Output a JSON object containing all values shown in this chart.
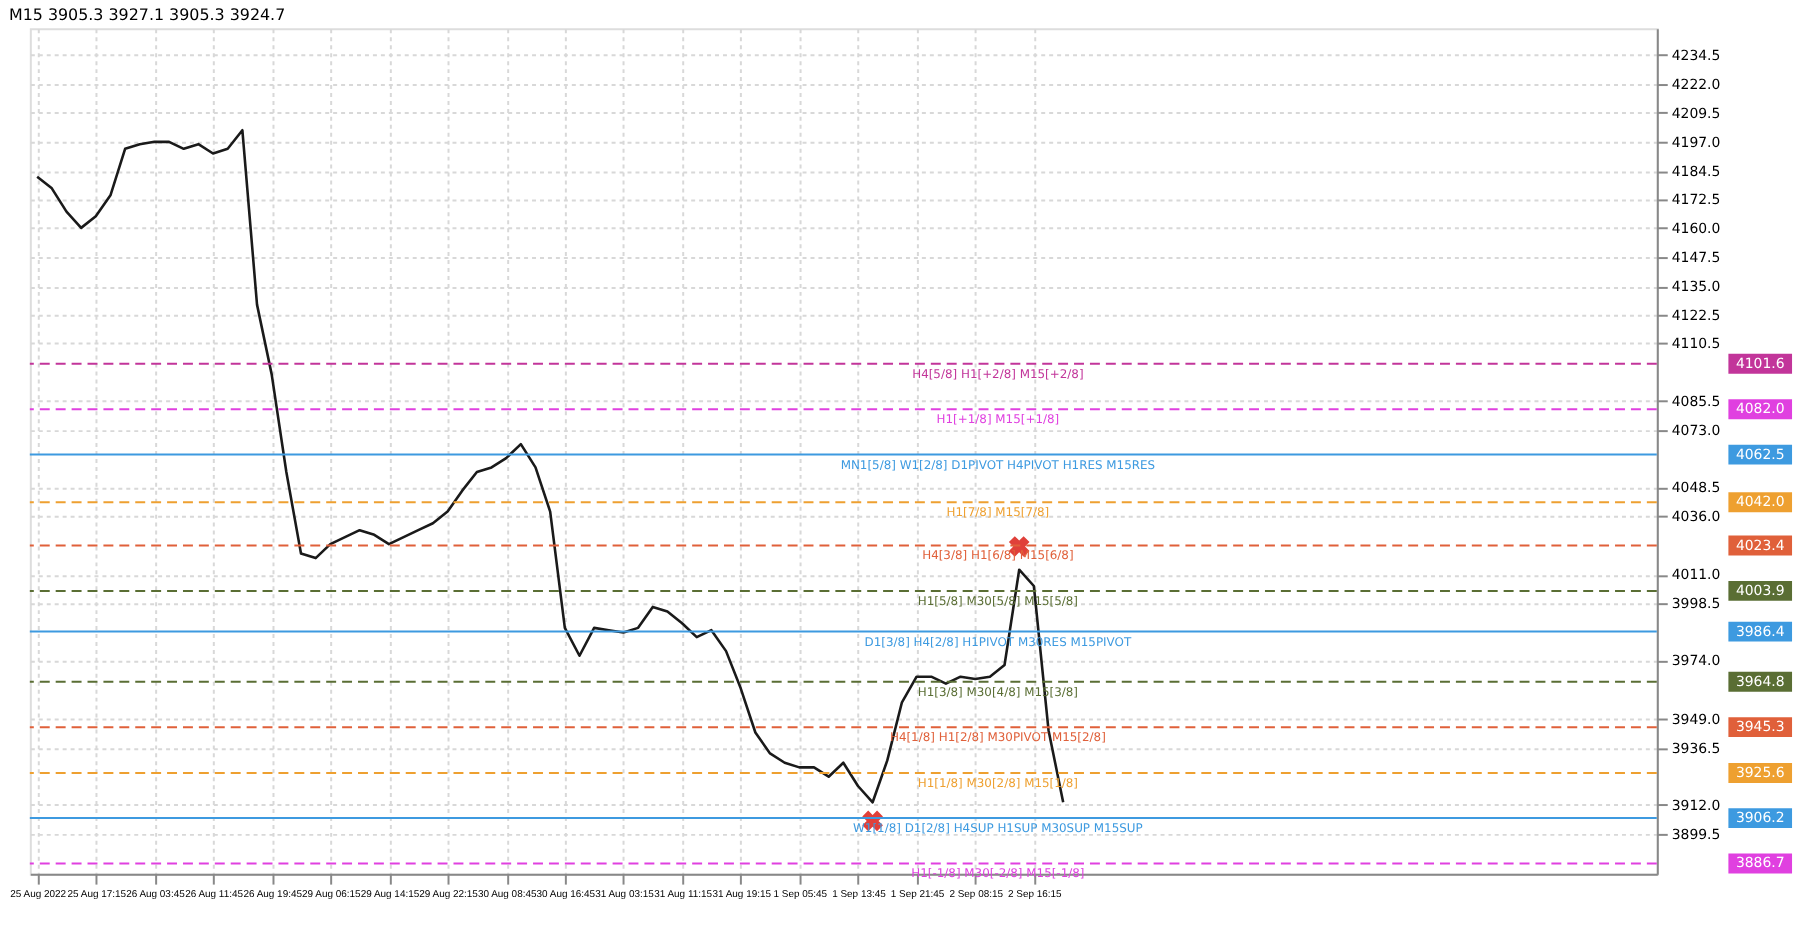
{
  "chart_data": {
    "type": "line",
    "title": "M15  3905.3 3927.1 3905.3 3924.7",
    "categories": [
      "25 Aug 2022",
      null,
      null,
      null,
      "25 Aug 17:15",
      null,
      null,
      null,
      "26 Aug 03:45",
      null,
      null,
      null,
      "26 Aug 11:45",
      null,
      null,
      null,
      "26 Aug 19:45",
      null,
      null,
      null,
      "29 Aug 06:15",
      null,
      null,
      null,
      "29 Aug 14:15",
      null,
      null,
      null,
      "29 Aug 22:15",
      null,
      null,
      null,
      "30 Aug 08:45",
      null,
      null,
      null,
      "30 Aug 16:45",
      null,
      null,
      null,
      "31 Aug 03:15",
      null,
      null,
      null,
      "31 Aug 11:15",
      null,
      null,
      null,
      "31 Aug 19:15",
      null,
      null,
      null,
      "1 Sep 05:45",
      null,
      null,
      null,
      "1 Sep 13:45",
      null,
      null,
      null,
      "1 Sep 21:45",
      null,
      null,
      null,
      "2 Sep 08:15",
      null,
      null,
      null,
      "2 Sep 16:15",
      null,
      null,
      null,
      null,
      null,
      null,
      null,
      null,
      null,
      null,
      null,
      null,
      null,
      null,
      null,
      null,
      null,
      null,
      null,
      null,
      null,
      null,
      null,
      null,
      null,
      null,
      null,
      null,
      null,
      null,
      null,
      null,
      null,
      null,
      null,
      null,
      null,
      null,
      null,
      null,
      null,
      null
    ],
    "series": [
      {
        "color": "#1a1a1a",
        "values": [
          4182,
          4177,
          4167,
          4160,
          4165,
          4174,
          4194,
          4196,
          4197,
          4197,
          4194,
          4196,
          4192,
          4194,
          4202,
          4127,
          4097,
          4055,
          4020,
          4018,
          4024,
          4027,
          4030,
          4028,
          4024,
          4027,
          4030,
          4033,
          4038,
          4047,
          4055,
          4057,
          4061,
          4067,
          4057,
          4038,
          3988,
          3976,
          3988,
          3987,
          3986,
          3988,
          3997,
          3995,
          3990,
          3984,
          3987,
          3978,
          3962,
          3943,
          3934,
          3930,
          3928,
          3928,
          3924,
          3930,
          3920,
          3913,
          3931,
          3956,
          3967,
          3967,
          3964,
          3967,
          3966,
          3967,
          3972,
          4013,
          4006,
          3944,
          3913,
          null,
          null,
          null,
          null,
          null,
          null,
          null,
          null,
          null,
          null,
          null,
          null,
          null,
          null,
          null,
          null,
          null,
          null,
          null,
          null,
          null,
          null,
          null,
          null,
          null,
          null,
          null,
          null,
          null,
          null,
          null,
          null,
          null,
          null,
          null,
          null,
          null,
          null,
          null,
          null
        ]
      },
      {
        "type": "scatter",
        "color": "#e0403a",
        "marker": "cross",
        "values": [
          null,
          null,
          null,
          null,
          null,
          null,
          null,
          null,
          null,
          null,
          null,
          null,
          null,
          null,
          null,
          null,
          null,
          null,
          null,
          null,
          null,
          null,
          null,
          null,
          null,
          null,
          null,
          null,
          null,
          null,
          null,
          null,
          null,
          null,
          null,
          null,
          null,
          null,
          null,
          null,
          null,
          null,
          null,
          null,
          null,
          null,
          null,
          null,
          null,
          null,
          null,
          null,
          null,
          null,
          null,
          null,
          null,
          3905,
          null,
          null,
          null,
          null,
          null,
          null,
          null,
          null,
          null,
          4023,
          null,
          null,
          null,
          null,
          null,
          null,
          null,
          null,
          null,
          null,
          null,
          null,
          null,
          null,
          null,
          null,
          null,
          null,
          null,
          null,
          null,
          null,
          null,
          null,
          null,
          null,
          null,
          null,
          null,
          null,
          null,
          null,
          null,
          null,
          null,
          null,
          null,
          null,
          null,
          null,
          null,
          null,
          null
        ]
      }
    ],
    "ylim": [
      3882.3,
      4245.8
    ],
    "yticks": [
      4234.5,
      {
        "value": 4222,
        "label": "4222.0"
      },
      4209.5,
      {
        "value": 4197,
        "label": "4197.0"
      },
      4184.5,
      4172.5,
      {
        "value": 4160,
        "label": "4160.0"
      },
      4147.5,
      {
        "value": 4135,
        "label": "4135.0"
      },
      4122.5,
      4110.5,
      4085.5,
      {
        "value": 4073,
        "label": "4073.0"
      },
      4048.5,
      {
        "value": 4036,
        "label": "4036.0"
      },
      {
        "value": 4011,
        "label": "4011.0"
      },
      3998.5,
      {
        "value": 3974,
        "label": "3974.0"
      },
      {
        "value": 3949,
        "label": "3949.0"
      },
      3936.5,
      {
        "value": 3912,
        "label": "3912.0"
      },
      3899.5
    ],
    "grid": true,
    "ref_lines": [
      {
        "axis": "y",
        "value": 4101.6,
        "label": "H4[5/8] H1[+2/8] M15[+2/8]",
        "color": "#c2359a",
        "line_style": "dashed"
      },
      {
        "axis": "y",
        "value": 4082.0,
        "label": "H1[+1/8] M15[+1/8]",
        "color": "#e040e0",
        "line_style": "dashed"
      },
      {
        "axis": "y",
        "value": 4062.5,
        "label": "MN1[5/8] W1[2/8] D1PIVOT H4PIVOT H1RES M15RES",
        "color": "#3d9ae0",
        "line_style": "solid"
      },
      {
        "axis": "y",
        "value": 4042.0,
        "label": "H1[7/8] M15[7/8]",
        "color": "#eea030",
        "line_style": "dashed"
      },
      {
        "axis": "y",
        "value": 4023.4,
        "label": "H4[3/8] H1[6/8] M15[6/8]",
        "color": "#e0603a",
        "line_style": "dashed"
      },
      {
        "axis": "y",
        "value": 4003.9,
        "label": "H1[5/8] M30[5/8] M15[5/8]",
        "color": "#5a6e34",
        "line_style": "dashed"
      },
      {
        "axis": "y",
        "value": 3986.4,
        "label": "D1[3/8] H4[2/8] H1PIVOT M30RES M15PIVOT",
        "color": "#3d9ae0",
        "line_style": "solid"
      },
      {
        "axis": "y",
        "value": 3964.8,
        "label": "H1[3/8] M30[4/8] M15[3/8]",
        "color": "#5a6e34",
        "line_style": "dashed"
      },
      {
        "axis": "y",
        "value": 3945.3,
        "label": "H4[1/8] H1[2/8] M30PIVOT M15[2/8]",
        "color": "#e0603a",
        "line_style": "dashed"
      },
      {
        "axis": "y",
        "value": 3925.6,
        "label": "H1[1/8] M30[2/8] M15[1/8]",
        "color": "#eea030",
        "line_style": "dashed"
      },
      {
        "axis": "y",
        "value": 3906.2,
        "label": "W1[1/8] D1[2/8] H4SUP H1SUP M30SUP M15SUP",
        "color": "#3d9ae0",
        "line_style": "solid"
      },
      {
        "axis": "y",
        "value": 3886.7,
        "label": "H1[-1/8] M30[-2/8] M15[-1/8]",
        "color": "#e040e0",
        "line_style": "dashed"
      }
    ],
    "annotations": [
      "4101.6",
      "4082.0",
      "4062.5",
      "4042.0",
      "4023.4",
      "4003.9",
      "3986.4",
      "3964.8",
      "3945.3",
      "3925.6",
      "3906.2",
      "3886.7"
    ]
  }
}
